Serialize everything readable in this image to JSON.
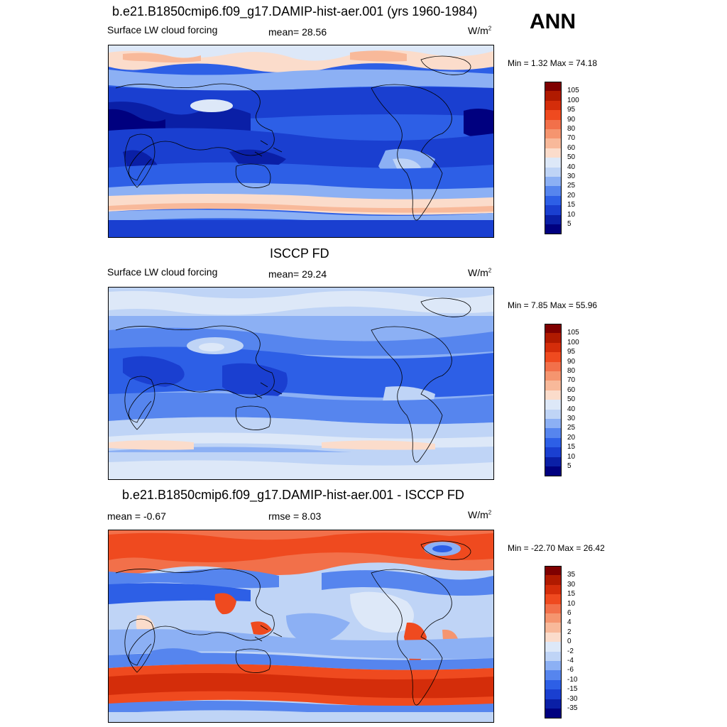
{
  "season": "ANN",
  "panels": [
    {
      "title": "b.e21.B1850cmip6.f09_g17.DAMIP-hist-aer.001 (yrs 1960-1984)",
      "left_label": "Surface LW cloud forcing",
      "mid_label": "mean=  28.56",
      "units": "W/m",
      "units_sup": "2",
      "minmax": "Min =   1.32 Max =  74.18",
      "levels": [
        "105",
        "100",
        "95",
        "90",
        "80",
        "70",
        "60",
        "50",
        "40",
        "30",
        "25",
        "20",
        "15",
        "10",
        "5"
      ],
      "colors": [
        "#7f0000",
        "#b01a00",
        "#d42d0a",
        "#ef4a1f",
        "#f2704a",
        "#f5956f",
        "#f8b99a",
        "#fbdccb",
        "#dde8f8",
        "#bfd4f6",
        "#8cb0f4",
        "#5685ee",
        "#2d5fe6",
        "#1a3fd0",
        "#0a1fa6",
        "#00007f"
      ]
    },
    {
      "title": "ISCCP FD",
      "left_label": "Surface LW cloud forcing",
      "mid_label": "mean=  29.24",
      "units": "W/m",
      "units_sup": "2",
      "minmax": "Min =   7.85 Max =  55.96",
      "levels": [
        "105",
        "100",
        "95",
        "90",
        "80",
        "70",
        "60",
        "50",
        "40",
        "30",
        "25",
        "20",
        "15",
        "10",
        "5"
      ],
      "colors": [
        "#7f0000",
        "#b01a00",
        "#d42d0a",
        "#ef4a1f",
        "#f2704a",
        "#f5956f",
        "#f8b99a",
        "#fbdccb",
        "#dde8f8",
        "#bfd4f6",
        "#8cb0f4",
        "#5685ee",
        "#2d5fe6",
        "#1a3fd0",
        "#0a1fa6",
        "#00007f"
      ]
    },
    {
      "title": "b.e21.B1850cmip6.f09_g17.DAMIP-hist-aer.001 - ISCCP FD",
      "left_label": "mean =  -0.67",
      "mid_label": "rmse =   8.03",
      "units": "W/m",
      "units_sup": "2",
      "minmax": "Min = -22.70 Max =  26.42",
      "levels": [
        "35",
        "30",
        "15",
        "10",
        "6",
        "4",
        "2",
        "0",
        "-2",
        "-4",
        "-6",
        "-10",
        "-15",
        "-30",
        "-35"
      ],
      "colors": [
        "#7f0000",
        "#b01a00",
        "#d42d0a",
        "#ef4a1f",
        "#f2704a",
        "#f5956f",
        "#f8b99a",
        "#fbdccb",
        "#dde8f8",
        "#bfd4f6",
        "#8cb0f4",
        "#5685ee",
        "#2d5fe6",
        "#1a3fd0",
        "#0a1fa6",
        "#00007f"
      ]
    }
  ]
}
